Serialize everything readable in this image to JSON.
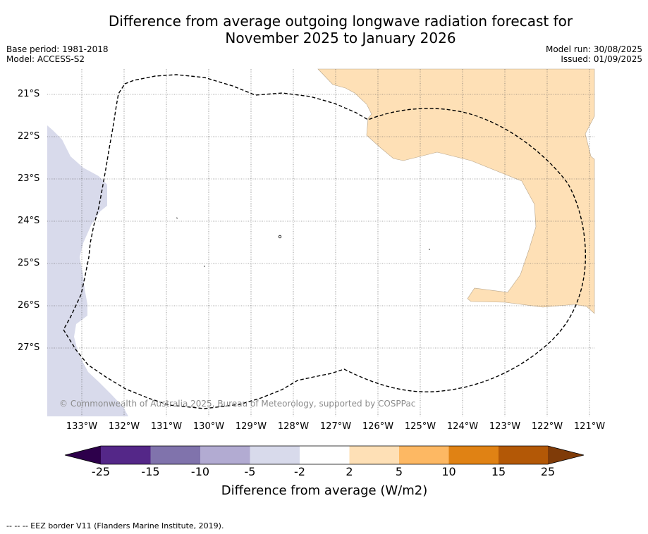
{
  "title_line1": "Difference from average outgoing longwave radiation forecast for",
  "title_line2": "November 2025 to January 2026",
  "base_period": "Base period: 1981-2018",
  "model": "Model: ACCESS-S2",
  "model_run": "Model run: 30/08/2025",
  "issued": "Issued: 01/09/2025",
  "copyright": "© Commonwealth of Australia 2025, Bureau of Meteorology, supported by COSPPac",
  "footnote": "--  --  -- EEZ border V11 (Flanders Marine Institute, 2019).",
  "map": {
    "lat_ticks": [
      "21°S",
      "22°S",
      "23°S",
      "24°S",
      "25°S",
      "26°S",
      "27°S"
    ],
    "lon_ticks": [
      "133°W",
      "132°W",
      "131°W",
      "130°W",
      "129°W",
      "128°W",
      "127°W",
      "126°W",
      "125°W",
      "124°W",
      "123°W",
      "122°W",
      "121°W"
    ]
  },
  "colorbar": {
    "label": "Difference from average (W/m2)",
    "ticks": [
      "-25",
      "-15",
      "-10",
      "-5",
      "-2",
      "2",
      "5",
      "10",
      "15",
      "25"
    ],
    "colors": [
      "#2d004b",
      "#542788",
      "#8073ac",
      "#b2abd2",
      "#d8daeb",
      "#ffffff",
      "#fee0b6",
      "#fdb863",
      "#e08214",
      "#b35806",
      "#7f3b08"
    ]
  }
}
